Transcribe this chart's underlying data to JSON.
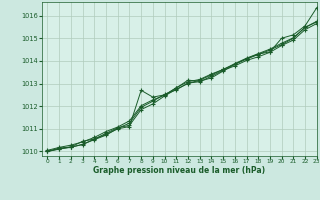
{
  "background_color": "#cce8e0",
  "plot_bg_color": "#d8f0e8",
  "grid_color": "#b0ccbc",
  "line_color": "#1a5c2a",
  "title": "Graphe pression niveau de la mer (hPa)",
  "title_color": "#1a5c2a",
  "xlim": [
    -0.5,
    23
  ],
  "ylim": [
    1009.8,
    1016.6
  ],
  "yticks": [
    1010,
    1011,
    1012,
    1013,
    1014,
    1015,
    1016
  ],
  "xticks": [
    0,
    1,
    2,
    3,
    4,
    5,
    6,
    7,
    8,
    9,
    10,
    11,
    12,
    13,
    14,
    15,
    16,
    17,
    18,
    19,
    20,
    21,
    22,
    23
  ],
  "series": [
    [
      1010.0,
      1010.1,
      1010.2,
      1010.45,
      1010.55,
      1010.75,
      1011.0,
      1011.1,
      1012.7,
      1012.4,
      1012.5,
      1012.8,
      1013.15,
      1013.1,
      1013.25,
      1013.55,
      1013.85,
      1014.1,
      1014.3,
      1014.4,
      1015.0,
      1015.15,
      1015.55,
      1016.35
    ],
    [
      1010.0,
      1010.15,
      1010.2,
      1010.3,
      1010.55,
      1010.8,
      1011.05,
      1011.15,
      1011.85,
      1012.1,
      1012.45,
      1012.75,
      1013.0,
      1013.15,
      1013.38,
      1013.62,
      1013.85,
      1014.08,
      1014.28,
      1014.48,
      1014.72,
      1015.0,
      1015.48,
      1015.75
    ],
    [
      1010.0,
      1010.12,
      1010.18,
      1010.32,
      1010.52,
      1010.72,
      1011.02,
      1011.25,
      1011.95,
      1012.22,
      1012.52,
      1012.72,
      1013.02,
      1013.08,
      1013.32,
      1013.58,
      1013.78,
      1014.02,
      1014.18,
      1014.38,
      1014.68,
      1014.92,
      1015.38,
      1015.65
    ],
    [
      1010.05,
      1010.18,
      1010.28,
      1010.42,
      1010.62,
      1010.88,
      1011.08,
      1011.35,
      1012.02,
      1012.28,
      1012.48,
      1012.82,
      1013.08,
      1013.18,
      1013.42,
      1013.62,
      1013.88,
      1014.12,
      1014.32,
      1014.52,
      1014.78,
      1015.02,
      1015.48,
      1015.72
    ]
  ]
}
